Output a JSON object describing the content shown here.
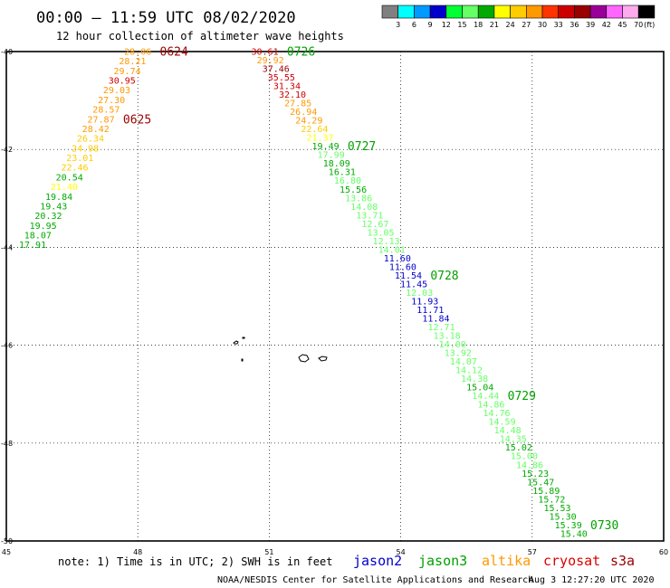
{
  "header": {
    "title": "00:00 – 11:59 UTC 08/02/2020",
    "subtitle": "12 hour collection of altimeter wave heights"
  },
  "footer": {
    "note": "note:  1) Time is in UTC; 2) SWH is in feet",
    "credit": "NOAA/NESDIS Center for Satellite Applications and Research",
    "timestamp": "Aug  3 12:27:20 UTC 2020",
    "satellites": [
      {
        "name": "jason2",
        "color": "#0000cc"
      },
      {
        "name": "jason3",
        "color": "#00a000"
      },
      {
        "name": "altika",
        "color": "#ff9900"
      },
      {
        "name": "cryosat",
        "color": "#dd0000"
      },
      {
        "name": "s3a",
        "color": "#990000"
      }
    ]
  },
  "colorbar": {
    "unit_label": "(ft)",
    "ticks": [
      "3",
      "6",
      "9",
      "12",
      "15",
      "18",
      "21",
      "24",
      "27",
      "30",
      "33",
      "36",
      "39",
      "42",
      "45",
      "70"
    ],
    "colors": [
      "#808080",
      "#00ffff",
      "#0099ff",
      "#0000cc",
      "#00ff33",
      "#66ff66",
      "#00aa00",
      "#ffff00",
      "#ffcc00",
      "#ff9900",
      "#ff3300",
      "#cc0000",
      "#990000",
      "#990099",
      "#ff66ff",
      "#ffaaee",
      "#000000"
    ]
  },
  "chart_data": {
    "type": "scatter",
    "title": "00:00 – 11:59 UTC 08/02/2020",
    "subtitle": "12 hour collection of altimeter wave heights",
    "xlim": [
      45,
      60
    ],
    "ylim": [
      -50,
      -40
    ],
    "x_ticks": [
      "45",
      "48",
      "51",
      "54",
      "57",
      "60"
    ],
    "y_ticks": [
      "-40",
      "-42",
      "-44",
      "-46",
      "-48",
      "-50"
    ],
    "grid": true,
    "unit": "ft",
    "track_a": {
      "lon_start": 48.0,
      "lat_start": -40.0,
      "lon_end": 45.6,
      "lat_end": -43.95,
      "values": [
        "28.06",
        "28.21",
        "29.74",
        "30.95",
        "29.03",
        "27.30",
        "28.57",
        "27.87",
        "28.42",
        "26.34",
        "24.98",
        "23.01",
        "22.46",
        "20.54",
        "21.40",
        "19.84",
        "19.43",
        "20.32",
        "19.95",
        "18.07",
        "17.91"
      ],
      "colors": [
        "#ff9900",
        "#ff9900",
        "#ff9900",
        "#cc0000",
        "#ff9900",
        "#ff9900",
        "#ff9900",
        "#ff9900",
        "#ff9900",
        "#ffcc00",
        "#ffcc00",
        "#ffcc00",
        "#ffcc00",
        "#00aa00",
        "#ffff00",
        "#00aa00",
        "#00aa00",
        "#00aa00",
        "#00aa00",
        "#00aa00",
        "#00aa00"
      ],
      "times": [
        {
          "text": "0624",
          "index": 0,
          "color": "#990000"
        },
        {
          "text": "0625",
          "index": 7,
          "color": "#990000"
        }
      ]
    },
    "track_b": {
      "lon_start": 50.9,
      "lat_start": -40.0,
      "lon_end": 57.95,
      "lat_end": -49.85,
      "values": [
        "30.61",
        "29.92",
        "37.46",
        "35.55",
        "31.34",
        "32.10",
        "27.85",
        "26.94",
        "24.29",
        "22.64",
        "21.37",
        "19.49",
        "17.99",
        "18.09",
        "16.31",
        "16.80",
        "15.56",
        "13.86",
        "14.08",
        "13.71",
        "12.67",
        "13.05",
        "12.13",
        "14.01",
        "11.60",
        "11.60",
        "11.54",
        "11.45",
        "12.03",
        "11.93",
        "11.71",
        "11.84",
        "12.71",
        "13.18",
        "14.00",
        "13.92",
        "14.07",
        "14.12",
        "14.38",
        "15.04",
        "14.44",
        "14.86",
        "14.76",
        "14.59",
        "14.48",
        "14.35",
        "15.02",
        "15.00",
        "14.86",
        "15.23",
        "15.47",
        "15.89",
        "15.72",
        "15.53",
        "15.30",
        "15.39",
        "15.40"
      ],
      "colors": [
        "#cc0000",
        "#ff9900",
        "#990000",
        "#cc0000",
        "#cc0000",
        "#cc0000",
        "#ff9900",
        "#ff9900",
        "#ff9900",
        "#ffcc00",
        "#ffff00",
        "#00aa00",
        "#66ff66",
        "#00aa00",
        "#00aa00",
        "#66ff66",
        "#00aa00",
        "#66ff66",
        "#66ff66",
        "#66ff66",
        "#66ff66",
        "#66ff66",
        "#66ff66",
        "#66ff66",
        "#0000cc",
        "#0000cc",
        "#0000cc",
        "#0000cc",
        "#66ff66",
        "#0000cc",
        "#0000cc",
        "#0000cc",
        "#66ff66",
        "#66ff66",
        "#66ff66",
        "#66ff66",
        "#66ff66",
        "#66ff66",
        "#66ff66",
        "#00aa00",
        "#66ff66",
        "#66ff66",
        "#66ff66",
        "#66ff66",
        "#66ff66",
        "#66ff66",
        "#00aa00",
        "#66ff66",
        "#66ff66",
        "#00aa00",
        "#00aa00",
        "#00aa00",
        "#00aa00",
        "#00aa00",
        "#00aa00",
        "#00aa00",
        "#00aa00"
      ],
      "times": [
        {
          "text": "0726",
          "index": 0,
          "color": "#00a000"
        },
        {
          "text": "0727",
          "index": 11,
          "color": "#00a000"
        },
        {
          "text": "0728",
          "index": 26,
          "color": "#00a000"
        },
        {
          "text": "0729",
          "index": 40,
          "color": "#00a000"
        },
        {
          "text": "0730",
          "index": 55,
          "color": "#00a000"
        }
      ]
    }
  }
}
